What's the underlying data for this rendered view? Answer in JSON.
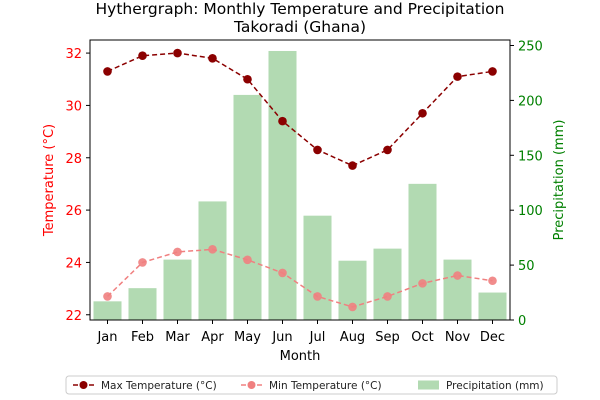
{
  "chart_data": {
    "type": "bar+line",
    "title": "Hythergraph: Monthly Temperature and Precipitation",
    "subtitle": "Takoradi (Ghana)",
    "xlabel": "Month",
    "ylabel_left": "Temperature (°C)",
    "ylabel_right": "Precipitation (mm)",
    "categories": [
      "Jan",
      "Feb",
      "Mar",
      "Apr",
      "May",
      "Jun",
      "Jul",
      "Aug",
      "Sep",
      "Oct",
      "Nov",
      "Dec"
    ],
    "ylim_left": [
      21.8,
      32.5
    ],
    "yticks_left": [
      22,
      24,
      26,
      28,
      30,
      32
    ],
    "ylim_right": [
      0,
      255
    ],
    "yticks_right": [
      0,
      50,
      100,
      150,
      200,
      250
    ],
    "series": [
      {
        "name": "Max Temperature (°C)",
        "axis": "left",
        "kind": "line",
        "color": "#8b0000",
        "style": "dashed",
        "values": [
          31.3,
          31.9,
          32.0,
          31.8,
          31.0,
          29.4,
          28.3,
          27.7,
          28.3,
          29.7,
          31.1,
          31.3
        ]
      },
      {
        "name": "Min Temperature (°C)",
        "axis": "left",
        "kind": "line",
        "color": "#f08080",
        "style": "dashed",
        "values": [
          22.7,
          24.0,
          24.4,
          24.5,
          24.1,
          23.6,
          22.7,
          22.3,
          22.7,
          23.2,
          23.5,
          23.3
        ]
      },
      {
        "name": "Precipitation (mm)",
        "axis": "right",
        "kind": "bar",
        "color": "#b2dab2",
        "values": [
          17,
          29,
          55,
          108,
          205,
          245,
          95,
          54,
          65,
          124,
          55,
          25
        ]
      }
    ],
    "left_axis_color": "#ff0000",
    "right_axis_color": "#008000",
    "legend_position": "bottom"
  }
}
